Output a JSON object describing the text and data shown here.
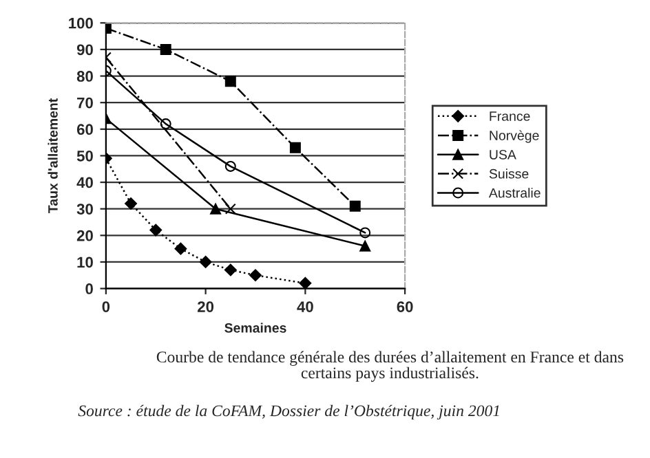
{
  "chart_data": {
    "type": "line",
    "xlabel": "Semaines",
    "ylabel": "Taux d'allaitement",
    "xlim": [
      0,
      60
    ],
    "xticks": [
      0,
      20,
      40,
      60
    ],
    "ylim": [
      0,
      100
    ],
    "yticks": [
      0,
      10,
      20,
      30,
      40,
      50,
      60,
      70,
      80,
      90,
      100
    ],
    "grid": "y",
    "legend": "right",
    "series": [
      {
        "name": "France",
        "color": "#000000",
        "marker": "diamond",
        "line_style": "dotted",
        "x": [
          0,
          5,
          10,
          15,
          20,
          25,
          30,
          40
        ],
        "values": [
          49,
          32,
          22,
          15,
          10,
          7,
          5,
          2
        ]
      },
      {
        "name": "Norvège",
        "color": "#000000",
        "marker": "square",
        "line_style": "dashed",
        "x": [
          0,
          12,
          25,
          38,
          50
        ],
        "values": [
          98,
          90,
          78,
          53,
          31
        ]
      },
      {
        "name": "USA",
        "color": "#000000",
        "marker": "triangle",
        "line_style": "solid",
        "x": [
          0,
          22,
          52
        ],
        "values": [
          64,
          30,
          16
        ]
      },
      {
        "name": "Suisse",
        "color": "#000000",
        "marker": "cross",
        "line_style": "dashed",
        "x": [
          0,
          25
        ],
        "values": [
          87,
          30
        ]
      },
      {
        "name": "Australie",
        "color": "#000000",
        "marker": "circle",
        "line_style": "solid",
        "x": [
          0,
          12,
          25,
          52
        ],
        "values": [
          82,
          62,
          46,
          21
        ]
      }
    ],
    "annotations": [
      "Courbe de tendance générale des durées d’allaitement en France et dans\ncertains pays industrialisés.",
      "Source : étude de la CoFAM, Dossier de l’Obstétrique, juin 2001"
    ]
  }
}
